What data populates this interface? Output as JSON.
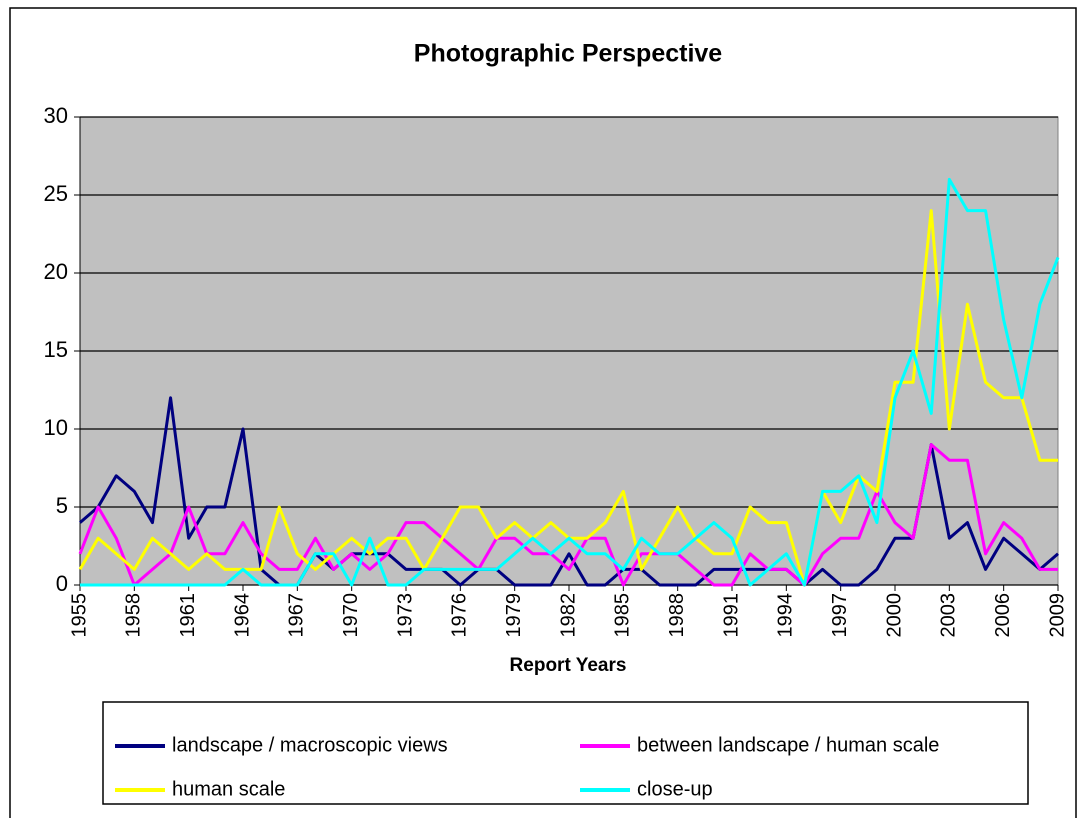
{
  "chart_data": {
    "type": "line",
    "title": "Photographic Perspective",
    "x_label": "Report Years",
    "x": [
      1955,
      1956,
      1957,
      1958,
      1959,
      1960,
      1961,
      1962,
      1963,
      1964,
      1965,
      1966,
      1967,
      1968,
      1969,
      1970,
      1971,
      1972,
      1973,
      1974,
      1975,
      1976,
      1977,
      1978,
      1979,
      1980,
      1981,
      1982,
      1983,
      1984,
      1985,
      1986,
      1987,
      1988,
      1989,
      1990,
      1991,
      1992,
      1993,
      1994,
      1995,
      1996,
      1997,
      1998,
      1999,
      2000,
      2001,
      2002,
      2003,
      2004,
      2005,
      2006,
      2007,
      2008,
      2009
    ],
    "xlim": [
      1955,
      2009
    ],
    "xticks": [
      1955,
      1958,
      1961,
      1964,
      1967,
      1970,
      1973,
      1976,
      1979,
      1982,
      1985,
      1988,
      1991,
      1994,
      1997,
      2000,
      2003,
      2006,
      2009
    ],
    "ylim": [
      0,
      30
    ],
    "yticks": [
      0,
      5,
      10,
      15,
      20,
      25,
      30
    ],
    "grid": true,
    "legend": "bottom",
    "series": [
      {
        "name": "landscape / macroscopic views",
        "color": "#000080",
        "values": [
          4,
          5,
          7,
          6,
          4,
          12,
          3,
          5,
          5,
          10,
          1,
          0,
          0,
          2,
          1,
          2,
          2,
          2,
          1,
          1,
          1,
          0,
          1,
          1,
          0,
          0,
          0,
          2,
          0,
          0,
          1,
          1,
          0,
          0,
          0,
          1,
          1,
          1,
          1,
          1,
          0,
          1,
          0,
          0,
          1,
          3,
          3,
          9,
          3,
          4,
          1,
          3,
          2,
          1,
          2
        ]
      },
      {
        "name": "between landscape / human scale",
        "color": "#ff00ff",
        "values": [
          2,
          5,
          3,
          0,
          1,
          2,
          5,
          2,
          2,
          4,
          2,
          1,
          1,
          3,
          1,
          2,
          1,
          2,
          4,
          4,
          3,
          2,
          1,
          3,
          3,
          2,
          2,
          1,
          3,
          3,
          0,
          2,
          2,
          2,
          1,
          0,
          0,
          2,
          1,
          1,
          0,
          2,
          3,
          3,
          6,
          4,
          3,
          9,
          8,
          8,
          2,
          4,
          3,
          1,
          1
        ]
      },
      {
        "name": "human scale",
        "color": "#ffff00",
        "values": [
          1,
          3,
          2,
          1,
          3,
          2,
          1,
          2,
          1,
          1,
          1,
          5,
          2,
          1,
          2,
          3,
          2,
          3,
          3,
          1,
          3,
          5,
          5,
          3,
          4,
          3,
          4,
          3,
          3,
          4,
          6,
          1,
          3,
          5,
          3,
          2,
          2,
          5,
          4,
          4,
          0,
          6,
          4,
          7,
          6,
          13,
          13,
          24,
          10,
          18,
          13,
          12,
          12,
          8,
          8
        ]
      },
      {
        "name": "close-up",
        "color": "#00ffff",
        "values": [
          0,
          0,
          0,
          0,
          0,
          0,
          0,
          0,
          0,
          1,
          0,
          0,
          0,
          2,
          2,
          0,
          3,
          0,
          0,
          1,
          1,
          1,
          1,
          1,
          2,
          3,
          2,
          3,
          2,
          2,
          1,
          3,
          2,
          2,
          3,
          4,
          3,
          0,
          1,
          2,
          0,
          6,
          6,
          7,
          4,
          12,
          15,
          11,
          26,
          24,
          24,
          17,
          12,
          18,
          21
        ]
      }
    ]
  }
}
